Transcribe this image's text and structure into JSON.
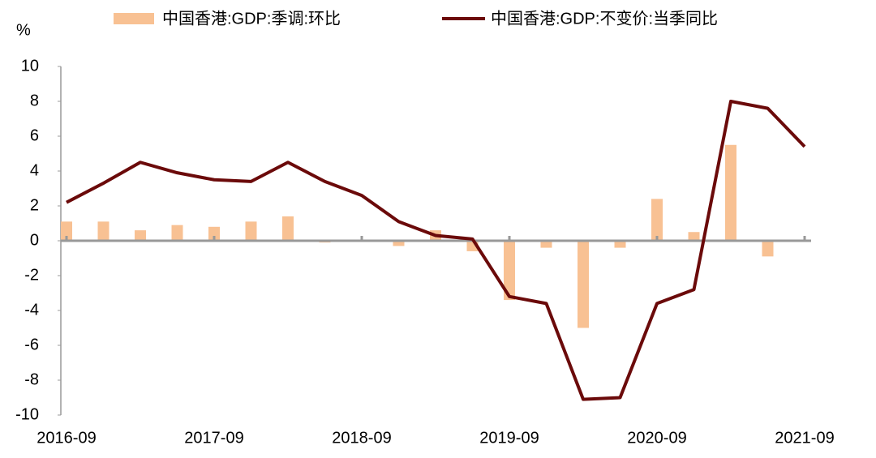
{
  "chart_data": {
    "type": "bar-line",
    "y_label": "%",
    "categories": [
      "2016-09",
      null,
      null,
      null,
      "2017-09",
      null,
      null,
      null,
      "2018-09",
      null,
      null,
      null,
      "2019-09",
      null,
      null,
      null,
      "2020-09",
      null,
      null,
      null,
      "2021-09"
    ],
    "series": [
      {
        "name": "中国香港:GDP:季调:环比",
        "type": "bar",
        "color": "#f8c193",
        "values": [
          1.1,
          1.1,
          0.6,
          0.9,
          0.8,
          1.1,
          1.4,
          -0.1,
          0,
          -0.3,
          0.6,
          -0.6,
          -3.4,
          -0.4,
          -5.0,
          -0.4,
          2.4,
          0.5,
          5.5,
          -0.9,
          0
        ]
      },
      {
        "name": "中国香港:GDP:不变价:当季同比",
        "type": "line",
        "color": "#6b0a0a",
        "values": [
          2.2,
          3.3,
          4.5,
          3.9,
          3.5,
          3.4,
          4.5,
          3.4,
          2.6,
          1.1,
          0.3,
          0.1,
          -3.2,
          -3.6,
          -9.1,
          -9.0,
          -3.6,
          -2.8,
          8.0,
          7.6,
          5.4
        ]
      }
    ],
    "ylim": [
      -10,
      10
    ],
    "yticks": [
      -10,
      -8,
      -6,
      -4,
      -2,
      0,
      2,
      4,
      6,
      8,
      10
    ],
    "grid": false
  }
}
